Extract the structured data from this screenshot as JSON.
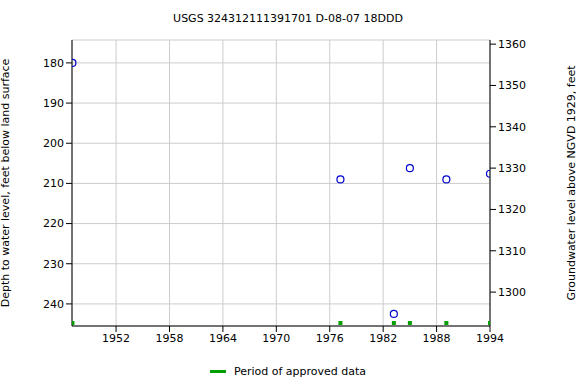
{
  "chart_data": {
    "type": "scatter",
    "title": "USGS 324312111391701 D-08-07 18DDD",
    "y_label": "Depth to water level, feet below land surface",
    "y2_label": "Groundwater level above NGVD 1929, feet",
    "x": [
      1947.1,
      1977.2,
      1983.2,
      1985.0,
      1989.1,
      1994.0
    ],
    "values": [
      180,
      209,
      242.5,
      206.2,
      209,
      207.6
    ],
    "color": "#0000cc",
    "marker": "circle-open",
    "xlim": [
      1947.05,
      1994
    ],
    "xticks": [
      1952,
      1958,
      1964,
      1970,
      1976,
      1982,
      1988,
      1994
    ],
    "ylim": [
      174.3,
      245.5
    ],
    "yticks": [
      180,
      190,
      200,
      210,
      220,
      230,
      240
    ],
    "y2lim": [
      1291.8,
      1361
    ],
    "y2ticks": [
      1300,
      1310,
      1320,
      1330,
      1340,
      1350,
      1360
    ],
    "grid": true,
    "approved_periods": {
      "name": "Period of approved data",
      "color": "#00a000",
      "marker": "square",
      "x": [
        1947.1,
        1977.2,
        1983.2,
        1985.0,
        1989.1,
        1994.0
      ]
    }
  }
}
